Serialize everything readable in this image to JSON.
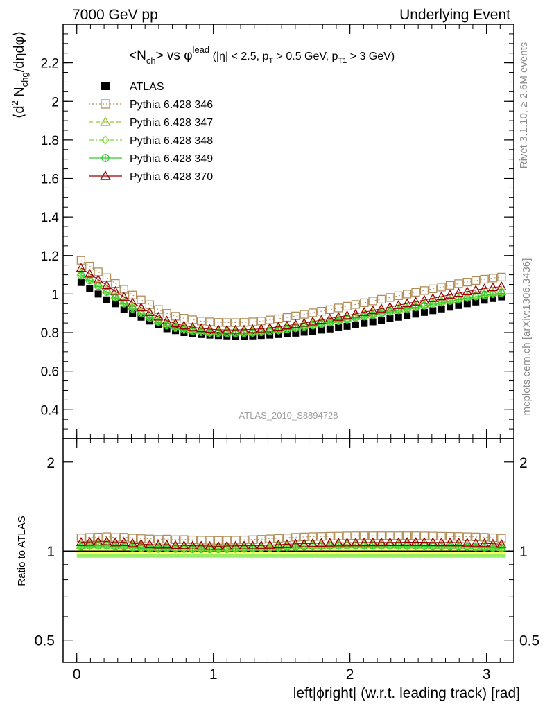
{
  "header": {
    "left": "7000 GeV pp",
    "right": "Underlying Event"
  },
  "side_labels": {
    "top": "Rivet 3.1.10, ≥ 2.6M events",
    "bottom": "mcplots.cern.ch [arXiv:1306.3436]"
  },
  "analysis_id": "ATLAS_2010_S8894728",
  "chart_data": [
    {
      "type": "scatter",
      "panel": "main",
      "title": "⟨N_ch⟩ vs φ^lead (|η| < 2.5, p_T > 0.5 GeV, p_T1 > 3 GeV)",
      "title_parts": {
        "a": "<N",
        "a_sub": "ch",
        "b": "> vs φ",
        "b_sup": "lead",
        "c": " (|η| < 2.5, p",
        "c_sub": "T",
        "d": " > 0.5 GeV, p",
        "d_sub": "T1",
        "e": " > 3 GeV)"
      },
      "ylabel_parts": {
        "a": "⟨d",
        "a_sup": "2",
        "b": " N",
        "b_sub": "chg",
        "c": "/dηdφ⟩"
      },
      "xlabel": "left|ϕright| (w.r.t. leading track) [rad]",
      "xlim": [
        -0.1,
        3.2
      ],
      "ylim": [
        0.25,
        2.4
      ],
      "yticks": [
        0.4,
        0.6,
        0.8,
        1,
        1.2,
        1.4,
        1.6,
        1.8,
        2,
        2.2
      ],
      "ytick_labels": [
        "0.4",
        "0.6",
        "0.8",
        "1",
        "1.2",
        "1.4",
        "1.6",
        "1.8",
        "2",
        "2.2"
      ],
      "xticks": [
        0,
        1,
        2,
        3
      ],
      "xtick_labels": [
        "0",
        "1",
        "2",
        "3"
      ],
      "legend_position": "top-left",
      "x": [
        0.0314,
        0.0942,
        0.157,
        0.2199,
        0.2827,
        0.3456,
        0.4084,
        0.4712,
        0.5341,
        0.5969,
        0.6597,
        0.7226,
        0.7854,
        0.8482,
        0.9111,
        0.9739,
        1.0367,
        1.0996,
        1.1624,
        1.2252,
        1.2881,
        1.3509,
        1.4137,
        1.4765,
        1.5394,
        1.6022,
        1.665,
        1.7279,
        1.7907,
        1.8535,
        1.9164,
        1.9792,
        2.042,
        2.1049,
        2.1677,
        2.2305,
        2.2934,
        2.3562,
        2.419,
        2.4819,
        2.5447,
        2.6075,
        2.6704,
        2.7332,
        2.796,
        2.8588,
        2.9217,
        2.9845,
        3.0473,
        3.1102
      ],
      "series": [
        {
          "name": "ATLAS",
          "marker": "square-filled",
          "color": "#000000",
          "line": "none",
          "values": [
            1.06,
            1.03,
            1.0,
            0.97,
            0.95,
            0.92,
            0.9,
            0.88,
            0.86,
            0.84,
            0.82,
            0.81,
            0.8,
            0.795,
            0.79,
            0.787,
            0.785,
            0.783,
            0.782,
            0.782,
            0.783,
            0.785,
            0.787,
            0.79,
            0.793,
            0.797,
            0.802,
            0.807,
            0.813,
            0.819,
            0.826,
            0.833,
            0.84,
            0.848,
            0.856,
            0.864,
            0.872,
            0.88,
            0.888,
            0.896,
            0.905,
            0.914,
            0.923,
            0.932,
            0.941,
            0.95,
            0.959,
            0.968,
            0.977,
            0.985
          ]
        },
        {
          "name": "Pythia 6.428 346",
          "marker": "square-open",
          "color": "#b08e5a",
          "line": "dotted",
          "values": [
            1.175,
            1.145,
            1.115,
            1.085,
            1.055,
            1.025,
            0.995,
            0.97,
            0.945,
            0.92,
            0.9,
            0.885,
            0.875,
            0.867,
            0.86,
            0.856,
            0.853,
            0.852,
            0.852,
            0.853,
            0.856,
            0.86,
            0.866,
            0.872,
            0.879,
            0.887,
            0.895,
            0.903,
            0.911,
            0.919,
            0.928,
            0.937,
            0.946,
            0.955,
            0.964,
            0.973,
            0.982,
            0.991,
            1.0,
            1.009,
            1.018,
            1.027,
            1.036,
            1.045,
            1.054,
            1.062,
            1.07,
            1.077,
            1.083,
            1.088
          ]
        },
        {
          "name": "Pythia 6.428 347",
          "marker": "triangle-open",
          "color": "#9ec43c",
          "line": "dashed",
          "values": [
            1.11,
            1.085,
            1.055,
            1.025,
            0.995,
            0.965,
            0.938,
            0.912,
            0.888,
            0.866,
            0.848,
            0.835,
            0.825,
            0.818,
            0.812,
            0.808,
            0.806,
            0.805,
            0.805,
            0.806,
            0.808,
            0.811,
            0.815,
            0.82,
            0.826,
            0.832,
            0.839,
            0.846,
            0.853,
            0.861,
            0.869,
            0.877,
            0.885,
            0.893,
            0.901,
            0.909,
            0.917,
            0.925,
            0.933,
            0.941,
            0.949,
            0.957,
            0.965,
            0.973,
            0.981,
            0.989,
            0.996,
            1.003,
            1.009,
            1.014
          ]
        },
        {
          "name": "Pythia 6.428 348",
          "marker": "diamond-open",
          "color": "#7fd93a",
          "line": "dashdot",
          "values": [
            1.1,
            1.075,
            1.045,
            1.015,
            0.985,
            0.955,
            0.928,
            0.903,
            0.88,
            0.858,
            0.84,
            0.827,
            0.818,
            0.811,
            0.806,
            0.802,
            0.8,
            0.799,
            0.799,
            0.8,
            0.802,
            0.805,
            0.809,
            0.814,
            0.82,
            0.826,
            0.833,
            0.84,
            0.847,
            0.855,
            0.863,
            0.871,
            0.879,
            0.887,
            0.895,
            0.903,
            0.911,
            0.919,
            0.927,
            0.935,
            0.943,
            0.951,
            0.959,
            0.967,
            0.975,
            0.983,
            0.99,
            0.997,
            1.003,
            1.008
          ]
        },
        {
          "name": "Pythia 6.428 349",
          "marker": "circle-cross",
          "color": "#33cc33",
          "line": "solid",
          "values": [
            1.095,
            1.07,
            1.04,
            1.01,
            0.98,
            0.95,
            0.923,
            0.898,
            0.875,
            0.854,
            0.836,
            0.823,
            0.813,
            0.806,
            0.801,
            0.798,
            0.796,
            0.795,
            0.795,
            0.796,
            0.798,
            0.801,
            0.805,
            0.81,
            0.816,
            0.822,
            0.829,
            0.836,
            0.843,
            0.851,
            0.859,
            0.867,
            0.875,
            0.883,
            0.891,
            0.899,
            0.907,
            0.915,
            0.923,
            0.931,
            0.939,
            0.947,
            0.955,
            0.963,
            0.971,
            0.979,
            0.986,
            0.993,
            0.999,
            1.004
          ]
        },
        {
          "name": "Pythia 6.428 370",
          "marker": "triangle-open",
          "color": "#990000",
          "line": "solid",
          "values": [
            1.135,
            1.105,
            1.075,
            1.045,
            1.015,
            0.985,
            0.955,
            0.93,
            0.905,
            0.882,
            0.862,
            0.847,
            0.836,
            0.828,
            0.822,
            0.818,
            0.815,
            0.814,
            0.814,
            0.815,
            0.817,
            0.82,
            0.825,
            0.83,
            0.836,
            0.843,
            0.85,
            0.857,
            0.865,
            0.873,
            0.881,
            0.889,
            0.897,
            0.906,
            0.915,
            0.924,
            0.933,
            0.942,
            0.951,
            0.96,
            0.969,
            0.978,
            0.987,
            0.996,
            1.005,
            1.013,
            1.021,
            1.028,
            1.034,
            1.039
          ]
        }
      ]
    },
    {
      "type": "scatter",
      "panel": "ratio",
      "ylabel": "Ratio to ATLAS",
      "ylim": [
        0.42,
        2.4
      ],
      "log_y": true,
      "yticks": [
        0.5,
        1,
        2
      ],
      "ytick_labels": [
        "0.5",
        "1",
        "2"
      ],
      "band_stat": 0.02,
      "band_total": 0.05,
      "band_stat_color": "#ffff66",
      "band_total_color": "#99ee66",
      "series": [
        {
          "name": "Pythia 6.428 346",
          "values": [
            1.108,
            1.112,
            1.115,
            1.118,
            1.111,
            1.114,
            1.106,
            1.102,
            1.099,
            1.095,
            1.098,
            1.093,
            1.094,
            1.091,
            1.089,
            1.088,
            1.087,
            1.088,
            1.089,
            1.091,
            1.093,
            1.096,
            1.1,
            1.104,
            1.108,
            1.113,
            1.116,
            1.119,
            1.12,
            1.122,
            1.123,
            1.125,
            1.126,
            1.126,
            1.126,
            1.126,
            1.126,
            1.126,
            1.126,
            1.126,
            1.125,
            1.124,
            1.122,
            1.121,
            1.12,
            1.118,
            1.116,
            1.113,
            1.109,
            1.105
          ]
        },
        {
          "name": "Pythia 6.428 347",
          "values": [
            1.047,
            1.053,
            1.055,
            1.057,
            1.047,
            1.049,
            1.042,
            1.036,
            1.033,
            1.031,
            1.034,
            1.031,
            1.031,
            1.029,
            1.028,
            1.027,
            1.027,
            1.028,
            1.029,
            1.031,
            1.032,
            1.033,
            1.036,
            1.038,
            1.042,
            1.044,
            1.046,
            1.048,
            1.049,
            1.051,
            1.052,
            1.053,
            1.054,
            1.053,
            1.053,
            1.052,
            1.052,
            1.051,
            1.051,
            1.05,
            1.049,
            1.047,
            1.046,
            1.044,
            1.043,
            1.041,
            1.039,
            1.036,
            1.033,
            1.029
          ]
        },
        {
          "name": "Pythia 6.428 348",
          "values": [
            1.038,
            1.044,
            1.045,
            1.046,
            1.037,
            1.038,
            1.031,
            1.026,
            1.023,
            1.021,
            1.024,
            1.021,
            1.022,
            1.02,
            1.02,
            1.019,
            1.019,
            1.02,
            1.022,
            1.023,
            1.024,
            1.025,
            1.028,
            1.03,
            1.034,
            1.036,
            1.039,
            1.041,
            1.042,
            1.044,
            1.045,
            1.046,
            1.046,
            1.046,
            1.046,
            1.045,
            1.045,
            1.044,
            1.044,
            1.044,
            1.042,
            1.04,
            1.039,
            1.038,
            1.036,
            1.035,
            1.032,
            1.03,
            1.027,
            1.023
          ]
        },
        {
          "name": "Pythia 6.428 349",
          "values": [
            1.033,
            1.039,
            1.04,
            1.041,
            1.032,
            1.033,
            1.026,
            1.02,
            1.017,
            1.017,
            1.02,
            1.016,
            1.016,
            1.014,
            1.014,
            1.014,
            1.014,
            1.015,
            1.017,
            1.018,
            1.019,
            1.02,
            1.023,
            1.025,
            1.029,
            1.031,
            1.034,
            1.036,
            1.037,
            1.039,
            1.04,
            1.041,
            1.042,
            1.041,
            1.041,
            1.041,
            1.04,
            1.04,
            1.039,
            1.039,
            1.038,
            1.036,
            1.035,
            1.033,
            1.032,
            1.031,
            1.028,
            1.026,
            1.023,
            1.019
          ]
        },
        {
          "name": "Pythia 6.428 370",
          "values": [
            1.071,
            1.073,
            1.075,
            1.077,
            1.068,
            1.071,
            1.061,
            1.057,
            1.052,
            1.05,
            1.051,
            1.046,
            1.045,
            1.042,
            1.041,
            1.039,
            1.038,
            1.04,
            1.041,
            1.042,
            1.043,
            1.045,
            1.048,
            1.051,
            1.054,
            1.058,
            1.06,
            1.062,
            1.064,
            1.066,
            1.067,
            1.067,
            1.068,
            1.068,
            1.069,
            1.069,
            1.07,
            1.07,
            1.071,
            1.071,
            1.071,
            1.07,
            1.069,
            1.069,
            1.068,
            1.066,
            1.065,
            1.062,
            1.058,
            1.055
          ]
        }
      ]
    }
  ]
}
